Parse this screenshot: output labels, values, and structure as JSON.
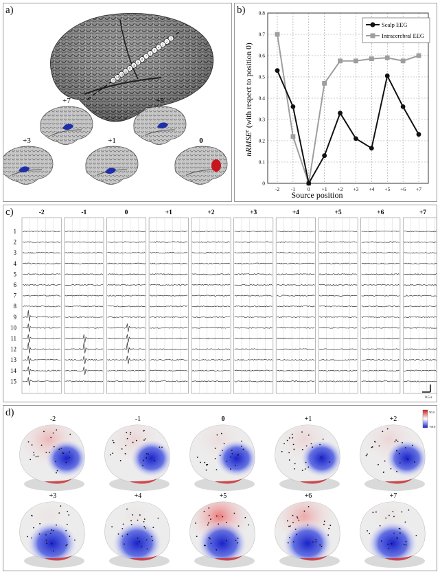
{
  "panel_a": {
    "label": "a)",
    "electrode_labels": [
      "1",
      "2",
      "3",
      "4",
      "5",
      "6",
      "7",
      "8",
      "9",
      "10",
      "11",
      "12",
      "13",
      "14",
      "15"
    ],
    "brains": [
      {
        "label": "+7",
        "color": "#1f2fa8"
      },
      {
        "label": "+5",
        "color": "#1f2fa8"
      },
      {
        "label": "+3",
        "color": "#1f2fa8"
      },
      {
        "label": "+1",
        "color": "#1f2fa8"
      },
      {
        "label": "0",
        "color": "#c8161d"
      }
    ]
  },
  "panel_b": {
    "label": "b)",
    "chart_data": {
      "type": "line",
      "categories": [
        "-2",
        "-1",
        "0",
        "+1",
        "+2",
        "+3",
        "+4",
        "+5",
        "+6",
        "+7"
      ],
      "series": [
        {
          "name": "Scalp EEG",
          "color": "#111111",
          "marker": "circle",
          "values": [
            0.53,
            0.36,
            0.0,
            0.13,
            0.33,
            0.21,
            0.165,
            0.505,
            0.36,
            0.23
          ]
        },
        {
          "name": "Intracerebral EEG",
          "color": "#9e9e9e",
          "marker": "square",
          "values": [
            0.7,
            0.22,
            0.0,
            0.47,
            0.575,
            0.575,
            0.585,
            0.59,
            0.575,
            0.6
          ]
        }
      ],
      "xlabel": "Source position",
      "ylabel_main": "nRMSE",
      "ylabel_sup": "e",
      "ylabel_rest": " (with respect to position 0)",
      "ylim": [
        0,
        0.8
      ],
      "yticks": [
        "0",
        "0.1",
        "0.2",
        "0.3",
        "0.4",
        "0.5",
        "0.6",
        "0.7",
        "0.8"
      ],
      "grid": true,
      "legend_position": "top-right"
    }
  },
  "panel_c": {
    "label": "c)",
    "columns": [
      "-2",
      "-1",
      "0",
      "+1",
      "+2",
      "+3",
      "+4",
      "+5",
      "+6",
      "+7"
    ],
    "rows": [
      "1",
      "2",
      "3",
      "4",
      "5",
      "6",
      "7",
      "8",
      "9",
      "10",
      "11",
      "12",
      "13",
      "14",
      "15"
    ],
    "scale_label": "0.5 s"
  },
  "panel_d": {
    "label": "d)",
    "maps_row1": [
      "-2",
      "-1",
      "0",
      "+1",
      "+2"
    ],
    "maps_row2": [
      "+3",
      "+4",
      "+5",
      "+6",
      "+7"
    ],
    "colorbar_max": "50.0",
    "colorbar_min": "-50.0"
  }
}
